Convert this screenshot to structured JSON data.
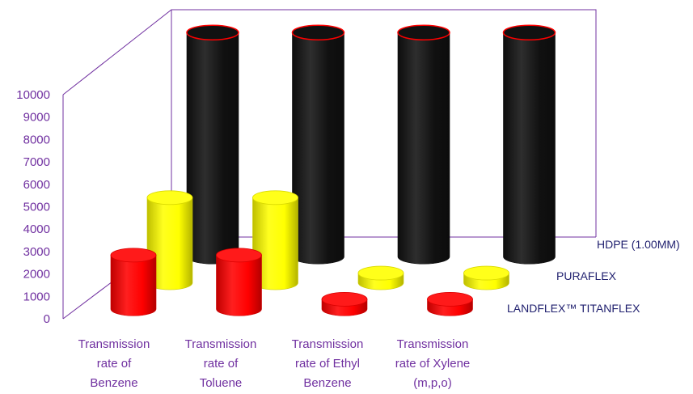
{
  "chart_data": {
    "type": "bar",
    "subtype": "3d-cylinder",
    "title": "",
    "xlabel": "",
    "ylabel": "",
    "ylim": [
      0,
      10000
    ],
    "yticks": [
      0,
      1000,
      2000,
      3000,
      4000,
      5000,
      6000,
      7000,
      8000,
      9000,
      10000
    ],
    "categories": [
      [
        "Transmission",
        "rate of",
        "Benzene"
      ],
      [
        "Transmission",
        "rate of",
        "Toluene"
      ],
      [
        "Transmission",
        "rate of Ethyl",
        "Benzene"
      ],
      [
        "Transmission",
        "rate of Xylene",
        "(m,p,o)"
      ]
    ],
    "series": [
      {
        "name": "LANDFLEX™ TITANFLEX",
        "color": "#ff0000",
        "values": [
          2400,
          2400,
          0,
          0
        ]
      },
      {
        "name": "PURAFLEX",
        "color": "#ffff00",
        "values": [
          3800,
          3800,
          0,
          0
        ]
      },
      {
        "name": "HDPE (1.00MM)",
        "color": "#111111",
        "values": [
          10000,
          10000,
          10000,
          10000
        ]
      }
    ],
    "grid": false,
    "legend": "series labels at right of each row",
    "axis_color": "#7030a0"
  }
}
